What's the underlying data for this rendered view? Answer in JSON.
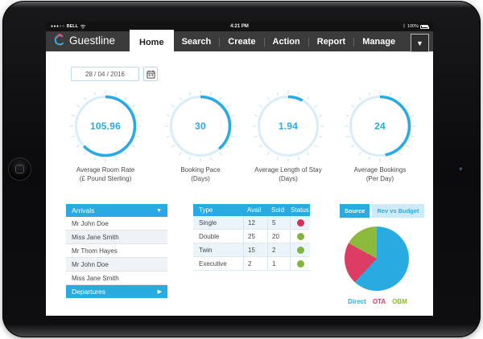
{
  "status_bar": {
    "signal_dots": "●●●○○",
    "carrier": "BELL",
    "time": "4:21 PM",
    "bluetooth_glyph": "ᛒ",
    "battery_text": "100%"
  },
  "nav": {
    "brand": "Guestline",
    "items": [
      {
        "label": "Home",
        "active": true
      },
      {
        "label": "Search",
        "active": false
      },
      {
        "label": "Create",
        "active": false
      },
      {
        "label": "Action",
        "active": false
      },
      {
        "label": "Report",
        "active": false
      },
      {
        "label": "Manage",
        "active": false
      }
    ],
    "dropdown_glyph": "▼"
  },
  "date_picker": {
    "value": "28 / 04 / 2016"
  },
  "gauges": [
    {
      "value": "105.96",
      "label_line1": "Average Room Rate",
      "label_line2": "(£ Pound Sterling)",
      "percent": 63
    },
    {
      "value": "30",
      "label_line1": "Booking Pace",
      "label_line2": "(Days)",
      "percent": 39
    },
    {
      "value": "1.94",
      "label_line1": "Average Length of Stay",
      "label_line2": "(Days)",
      "percent": 8
    },
    {
      "value": "24",
      "label_line1": "Average Bookings",
      "label_line2": "(Per Day)",
      "percent": 47
    }
  ],
  "arrivals": {
    "header": "Arrivals",
    "header_arrow": "▼",
    "guests": [
      "Mr John Doe",
      "Miss Jane Smith",
      "Mr Thom Hayes",
      "Mr John Doe",
      "Miss Jane Smith"
    ],
    "footer": "Departures",
    "footer_arrow": "▶"
  },
  "room_table": {
    "headers": [
      "Type",
      "Avail",
      "Sold",
      "Status"
    ],
    "rows": [
      {
        "type": "Single",
        "avail": "12",
        "sold": "5",
        "status": "red"
      },
      {
        "type": "Double",
        "avail": "25",
        "sold": "20",
        "status": "green"
      },
      {
        "type": "Twin",
        "avail": "15",
        "sold": "2",
        "status": "green"
      },
      {
        "type": "Executive",
        "avail": "2",
        "sold": "1",
        "status": "green"
      }
    ]
  },
  "source_panel": {
    "tabs": [
      {
        "label": "Source",
        "active": true
      },
      {
        "label": "Rev vs Budget",
        "active": false
      }
    ]
  },
  "chart_data": [
    {
      "type": "pie",
      "title": "Source",
      "labels": [
        "Direct",
        "OTA",
        "OBM"
      ],
      "values": [
        62,
        21,
        17
      ],
      "colors": [
        "#29abe2",
        "#dd3d62",
        "#8db93c"
      ],
      "legend_position": "bottom"
    },
    {
      "type": "gauge",
      "title": "KPI dials",
      "labels": [
        "Average Room Rate (£ Pound Sterling)",
        "Booking Pace (Days)",
        "Average Length of Stay (Days)",
        "Average Bookings (Per Day)"
      ],
      "values": [
        105.96,
        30,
        1.94,
        24
      ],
      "arc_percent": [
        63,
        39,
        8,
        47
      ]
    }
  ],
  "colors": {
    "accent": "#29abe2",
    "gauge_ring": "#d8edf9",
    "gauge_tick": "#cfe9f7",
    "status_red": "#d63058",
    "status_green": "#7fb53e",
    "pie_direct": "#29abe2",
    "pie_ota": "#dd3d62",
    "pie_obm": "#8db93c"
  }
}
